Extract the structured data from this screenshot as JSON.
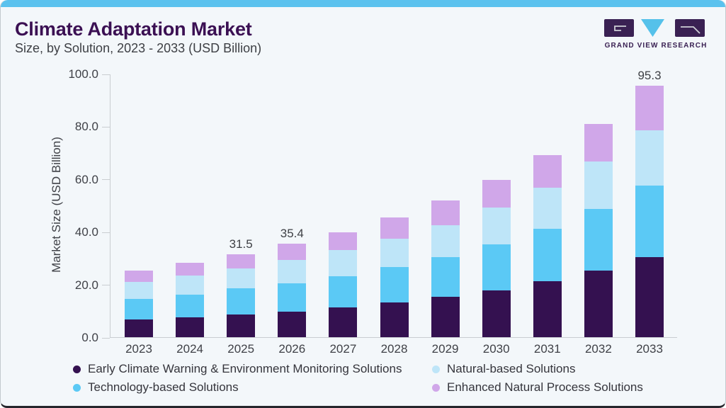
{
  "header": {
    "title": "Climate Adaptation Market",
    "subtitle": "Size, by Solution, 2023 - 2033 (USD Billion)",
    "brand": "GRAND VIEW RESEARCH"
  },
  "colors": {
    "accent_strip": "#5bc2ee",
    "title": "#3b1053",
    "logo_purple": "#3a2153",
    "logo_triangle": "#55c1ea",
    "text": "#3f4147",
    "axis_line": "#c9cdd1",
    "card_background": "#f3f7fa"
  },
  "chart_data": {
    "type": "bar",
    "stacked": true,
    "title": "Climate Adaptation Market Size, by Solution, 2023 - 2033 (USD Billion)",
    "categories": [
      "2023",
      "2024",
      "2025",
      "2026",
      "2027",
      "2028",
      "2029",
      "2030",
      "2031",
      "2032",
      "2033"
    ],
    "series": [
      {
        "key": "early-climate-warning",
        "name": "Early Climate Warning & Environment Monitoring Solutions",
        "color": "#341150",
        "values": [
          6.7,
          7.5,
          8.6,
          9.8,
          11.3,
          13.2,
          15.3,
          17.8,
          21.2,
          25.2,
          30.5
        ]
      },
      {
        "key": "technology-based",
        "name": "Technology-based Solutions",
        "color": "#5bc9f5",
        "values": [
          7.9,
          8.7,
          9.9,
          10.6,
          11.8,
          13.5,
          15.2,
          17.5,
          19.9,
          23.4,
          27.0
        ]
      },
      {
        "key": "natural-based",
        "name": "Natural-based Solutions",
        "color": "#bee5f8",
        "values": [
          6.4,
          7.1,
          7.7,
          8.8,
          10.0,
          10.8,
          12.0,
          14.0,
          15.7,
          18.2,
          21.0
        ]
      },
      {
        "key": "enhanced-natural-process",
        "name": "Enhanced Natural Process Solutions",
        "color": "#d0a7e9",
        "values": [
          4.3,
          5.0,
          5.3,
          6.2,
          6.8,
          8.0,
          9.4,
          10.5,
          12.2,
          14.2,
          16.8
        ]
      }
    ],
    "totals_estimated": [
      25.3,
      28.3,
      31.5,
      35.4,
      39.9,
      45.5,
      51.9,
      59.8,
      69.0,
      81.0,
      95.3
    ],
    "bar_labels": {
      "2025": "31.5",
      "2026": "35.4",
      "2033": "95.3"
    },
    "ylabel": "Market Size (USD Billion)",
    "ylim": [
      0,
      100
    ],
    "yticks": [
      "0.0",
      "20.0",
      "40.0",
      "60.0",
      "80.0",
      "100.0"
    ],
    "grid": false,
    "legend_position": "bottom"
  },
  "legend": {
    "columns": [
      [
        "early-climate-warning",
        "technology-based"
      ],
      [
        "natural-based",
        "enhanced-natural-process"
      ]
    ]
  }
}
